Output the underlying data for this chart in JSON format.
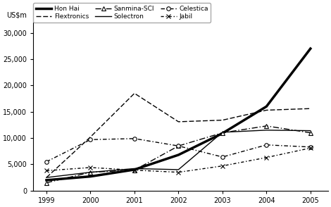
{
  "years": [
    1999,
    2000,
    2001,
    2002,
    2003,
    2004,
    2005
  ],
  "series": {
    "Hon Hai": {
      "values": [
        2000,
        2700,
        4000,
        6800,
        10900,
        16000,
        27000
      ],
      "color": "#000000",
      "linewidth": 2.5,
      "linestyle": "solid",
      "marker": null,
      "markersize": 0,
      "dashes": null
    },
    "Flextronics": {
      "values": [
        2500,
        10200,
        18500,
        13100,
        13400,
        15300,
        15600
      ],
      "color": "#000000",
      "linewidth": 1.0,
      "linestyle": "dashed",
      "marker": null,
      "markersize": 0,
      "dashes": [
        5,
        2
      ]
    },
    "Sanmina-SCI": {
      "values": [
        1500,
        3500,
        3900,
        8500,
        11000,
        12300,
        11000
      ],
      "color": "#000000",
      "linewidth": 1.0,
      "linestyle": "dashdot",
      "marker": "^",
      "markersize": 4,
      "dashes": null
    },
    "Solectron": {
      "values": [
        2500,
        3500,
        4200,
        4000,
        11100,
        11500,
        11400
      ],
      "color": "#000000",
      "linewidth": 1.0,
      "linestyle": "solid",
      "marker": null,
      "markersize": 0,
      "dashes": null
    },
    "Celestica": {
      "values": [
        5500,
        9700,
        9900,
        8500,
        6400,
        8700,
        8300
      ],
      "color": "#000000",
      "linewidth": 1.0,
      "linestyle": "dashdot",
      "marker": "o",
      "markersize": 4,
      "dashes": null
    },
    "Jabil": {
      "values": [
        3800,
        4400,
        3900,
        3500,
        4700,
        6300,
        8100
      ],
      "color": "#000000",
      "linewidth": 1.0,
      "linestyle": "dashed",
      "marker": "x",
      "markersize": 5,
      "dashes": [
        3,
        2
      ]
    }
  },
  "legend_order": [
    "Hon Hai",
    "Flextronics",
    "Sanmina-SCI",
    "Solectron",
    "Celestica",
    "Jabil"
  ],
  "ylabel": "US$m",
  "ylim": [
    0,
    32000
  ],
  "yticks": [
    0,
    5000,
    10000,
    15000,
    20000,
    25000,
    30000
  ],
  "ytick_labels": [
    "0",
    "5,000",
    "10,000",
    "15,000",
    "20,000",
    "25,000",
    "30,000"
  ],
  "xlim": [
    1998.7,
    2005.4
  ],
  "xticks": [
    1999,
    2000,
    2001,
    2002,
    2003,
    2004,
    2005
  ],
  "background_color": "#ffffff"
}
